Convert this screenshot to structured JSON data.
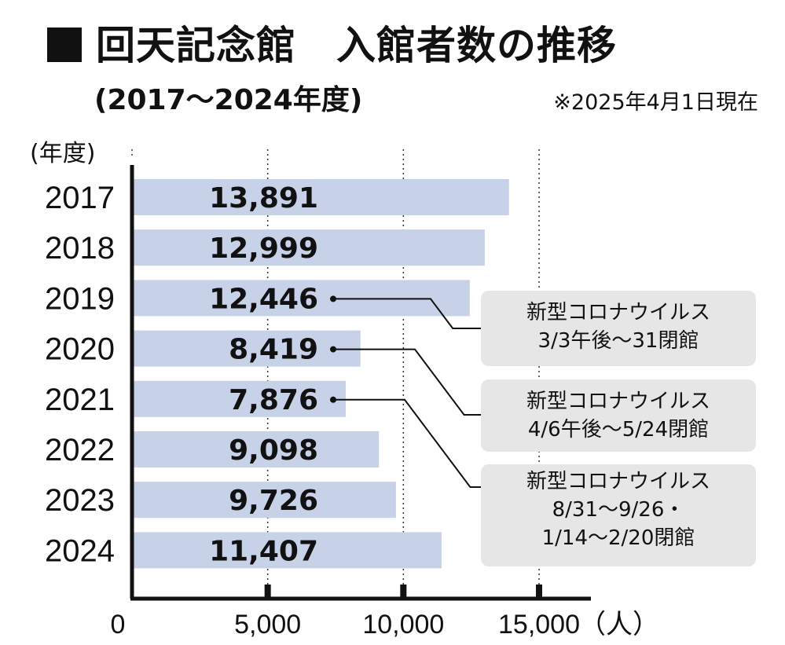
{
  "header": {
    "title": "■ 回天記念館　入館者数の推移",
    "title_text": "回天記念館　入館者数の推移",
    "subtitle": "(2017～2024年度)",
    "as_of": "※2025年4月1日現在",
    "year_unit": "(年度)"
  },
  "chart_data": {
    "type": "bar",
    "orientation": "horizontal",
    "title": "回天記念館　入館者数の推移",
    "subtitle": "(2017～2024年度)",
    "categories": [
      "2017",
      "2018",
      "2019",
      "2020",
      "2021",
      "2022",
      "2023",
      "2024"
    ],
    "values": [
      13891,
      12999,
      12446,
      8419,
      7876,
      9098,
      9726,
      11407
    ],
    "value_labels": [
      "13,891",
      "12,999",
      "12,446",
      "8,419",
      "7,876",
      "9,098",
      "9,726",
      "11,407"
    ],
    "xlim": [
      0,
      17500
    ],
    "xticks": [
      0,
      5000,
      10000,
      15000
    ],
    "xtick_labels": [
      "0",
      "5,000",
      "10,000",
      "15,000"
    ],
    "xlabel": "（人）",
    "ylabel": "(年度)",
    "grid": "vertical dotted",
    "bar_color": "#c7d1e8",
    "annotations": [
      {
        "year": "2019",
        "lines": [
          "新型コロナウイルス",
          "3/3午後～31閉館"
        ]
      },
      {
        "year": "2020",
        "lines": [
          "新型コロナウイルス",
          "4/6午後～5/24閉館"
        ]
      },
      {
        "year": "2021",
        "lines": [
          "新型コロナウイルス",
          "8/31～9/26・",
          "1/14～2/20閉館"
        ]
      }
    ]
  }
}
